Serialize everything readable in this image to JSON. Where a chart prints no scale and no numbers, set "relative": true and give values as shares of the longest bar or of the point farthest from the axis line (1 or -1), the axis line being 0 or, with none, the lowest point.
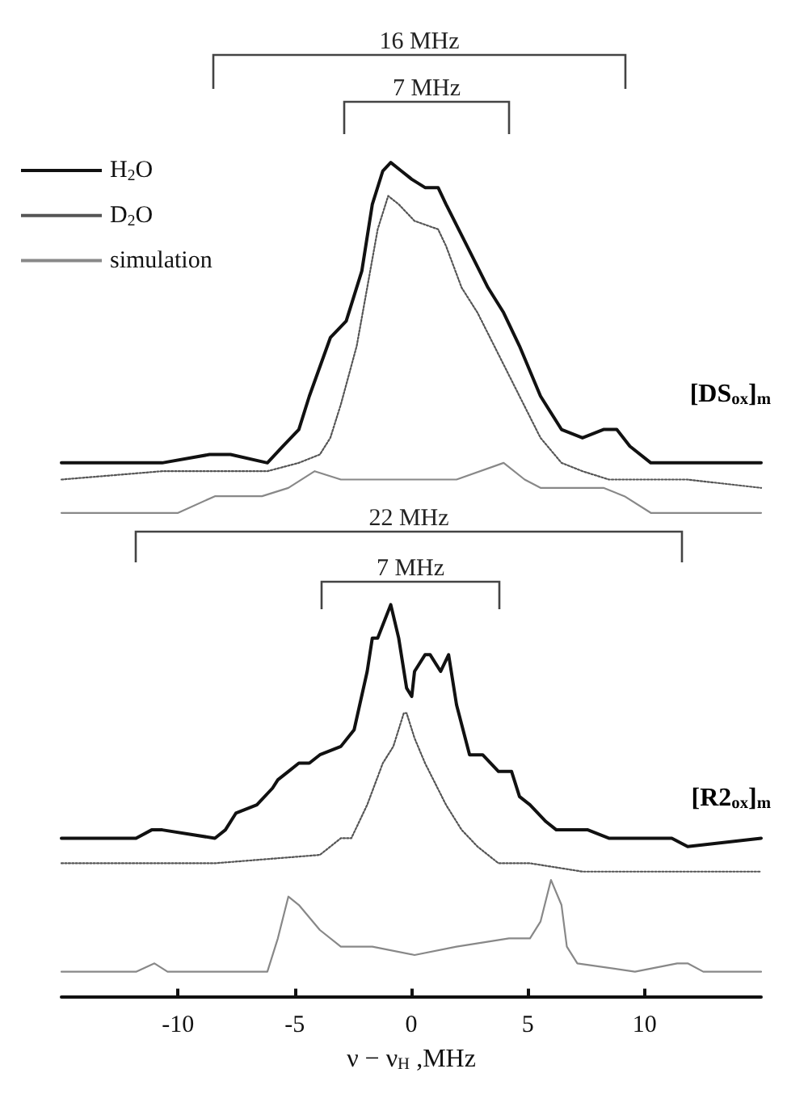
{
  "chart_data": {
    "type": "line",
    "relative": true,
    "xlim": [
      -15,
      15
    ],
    "xticks": [
      -10,
      -5,
      0,
      5,
      10
    ],
    "grid": false,
    "legend": "top left",
    "xlabel": "ν − ν$_{H}$ ,MHz",
    "annotations": [
      "16 MHz",
      "7 MHz",
      "22 MHz",
      "7 MHz",
      "[DS$_{ox}$]$_{m}$",
      "[R2$_{ox}$]$_{m}$"
    ],
    "series": [
      {
        "name": "H$_{2}$O",
        "color": "#111111",
        "line_style": "solid",
        "x": [
          -15.0,
          -10.68,
          -8.65,
          -7.75,
          -6.17,
          -5.5,
          -4.82,
          -4.37,
          -3.47,
          -2.79,
          -2.12,
          -1.67,
          -1.22,
          -0.88,
          -0.43,
          0.02,
          0.59,
          1.15,
          1.49,
          2.39,
          3.29,
          3.96,
          4.64,
          5.54,
          6.44,
          7.34,
          8.24,
          8.81,
          9.37,
          10.27,
          11.85,
          15.0
        ],
        "values": [
          0.64,
          0.64,
          0.65,
          0.65,
          0.64,
          0.66,
          0.68,
          0.72,
          0.79,
          0.81,
          0.87,
          0.95,
          0.99,
          1.0,
          0.99,
          0.98,
          0.97,
          0.97,
          0.95,
          0.9,
          0.85,
          0.82,
          0.78,
          0.72,
          0.68,
          0.67,
          0.68,
          0.68,
          0.66,
          0.64,
          0.64,
          0.64
        ]
      },
      {
        "name": "D$_{2}$O",
        "color": "#555555",
        "line_style": "dotted",
        "x": [
          -15.0,
          -10.68,
          -6.17,
          -4.82,
          -3.92,
          -3.47,
          -3.02,
          -2.34,
          -1.89,
          -1.44,
          -0.99,
          -0.54,
          0.14,
          1.15,
          1.49,
          2.16,
          2.84,
          3.74,
          4.64,
          5.54,
          6.44,
          7.34,
          8.47,
          9.59,
          11.85,
          15.0
        ],
        "values": [
          0.62,
          0.63,
          0.63,
          0.64,
          0.65,
          0.67,
          0.71,
          0.78,
          0.85,
          0.92,
          0.96,
          0.95,
          0.93,
          0.92,
          0.9,
          0.85,
          0.82,
          0.77,
          0.72,
          0.67,
          0.64,
          0.63,
          0.62,
          0.62,
          0.62,
          0.61
        ]
      },
      {
        "name": "simulation",
        "color": "#888888",
        "line_style": "solid",
        "x": [
          -15.0,
          -10.0,
          -8.42,
          -6.4,
          -5.27,
          -4.14,
          -3.02,
          -1.67,
          0.14,
          1.94,
          3.96,
          4.86,
          5.54,
          6.89,
          8.24,
          9.14,
          10.27,
          15.0
        ],
        "values": [
          0.58,
          0.58,
          0.6,
          0.6,
          0.61,
          0.63,
          0.62,
          0.62,
          0.62,
          0.62,
          0.64,
          0.62,
          0.61,
          0.61,
          0.61,
          0.6,
          0.58,
          0.58
        ]
      },
      {
        "color": "#111111",
        "line_style": "solid",
        "x": [
          -15.0,
          -11.8,
          -11.13,
          -10.68,
          -8.42,
          -7.97,
          -7.52,
          -6.62,
          -5.95,
          -5.72,
          -5.27,
          -4.82,
          -4.37,
          -3.92,
          -3.02,
          -2.45,
          -1.89,
          -1.67,
          -1.44,
          -0.88,
          -0.54,
          -0.2,
          0.02,
          0.14,
          0.59,
          0.81,
          1.26,
          1.6,
          1.94,
          2.5,
          3.06,
          3.74,
          4.3,
          4.64,
          5.09,
          5.77,
          6.22,
          7.57,
          8.47,
          11.17,
          11.85,
          15.0
        ],
        "values": [
          0.19,
          0.19,
          0.2,
          0.2,
          0.19,
          0.2,
          0.22,
          0.23,
          0.25,
          0.26,
          0.27,
          0.28,
          0.28,
          0.29,
          0.3,
          0.32,
          0.39,
          0.43,
          0.43,
          0.47,
          0.43,
          0.37,
          0.36,
          0.39,
          0.41,
          0.41,
          0.39,
          0.41,
          0.35,
          0.29,
          0.29,
          0.27,
          0.27,
          0.24,
          0.23,
          0.21,
          0.2,
          0.2,
          0.19,
          0.19,
          0.18,
          0.19
        ]
      },
      {
        "color": "#555555",
        "line_style": "dotted",
        "x": [
          -15.0,
          -8.42,
          -3.92,
          -3.02,
          -2.57,
          -1.89,
          -1.22,
          -0.77,
          -0.32,
          -0.2,
          0.14,
          0.59,
          1.49,
          2.16,
          2.84,
          3.74,
          5.09,
          7.34,
          15.0
        ],
        "values": [
          0.16,
          0.16,
          0.17,
          0.19,
          0.19,
          0.23,
          0.28,
          0.3,
          0.34,
          0.34,
          0.31,
          0.28,
          0.23,
          0.2,
          0.18,
          0.16,
          0.16,
          0.15,
          0.15
        ]
      },
      {
        "color": "#888888",
        "line_style": "solid",
        "x": [
          -15.0,
          -11.8,
          -11.01,
          -10.45,
          -6.17,
          -5.72,
          -5.27,
          -4.82,
          -3.92,
          -3.02,
          -1.67,
          0.14,
          1.94,
          4.19,
          5.09,
          5.54,
          5.99,
          6.44,
          6.67,
          7.12,
          9.59,
          11.4,
          11.85,
          12.52,
          15.0
        ],
        "values": [
          0.03,
          0.03,
          0.04,
          0.03,
          0.03,
          0.07,
          0.12,
          0.11,
          0.08,
          0.06,
          0.06,
          0.05,
          0.06,
          0.07,
          0.07,
          0.09,
          0.14,
          0.11,
          0.06,
          0.04,
          0.03,
          0.04,
          0.04,
          0.03,
          0.03
        ]
      }
    ]
  }
}
